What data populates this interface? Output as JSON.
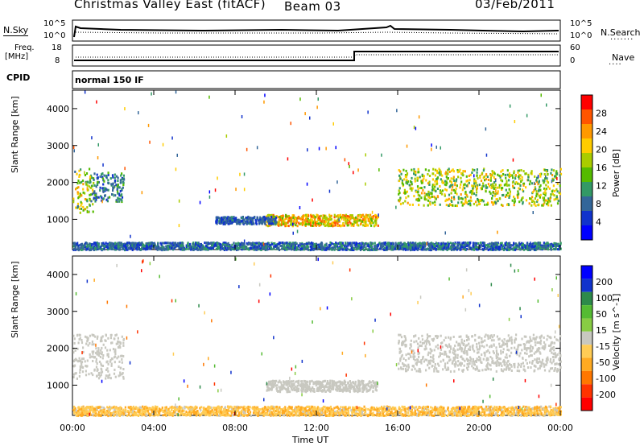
{
  "header": {
    "station": "Christmas Valley East (fitACF)",
    "beam": "Beam 03",
    "date": "03/Feb/2011"
  },
  "top_panels": {
    "nsky_label": "N.Sky",
    "nsky_ticks": [
      "10^5",
      "10^0"
    ],
    "nsearch_label": "N.Search",
    "nsearch_ticks": [
      "10^5",
      "10^0"
    ],
    "freq_label_1": "Freq.",
    "freq_label_2": "[MHz]",
    "freq_ticks": [
      "18",
      "8"
    ],
    "nave_label": "Nave",
    "nave_ticks": [
      "60",
      "0"
    ],
    "cpid_label": "CPID",
    "cpid_value": "normal 150 IF"
  },
  "chart_data": [
    {
      "type": "heatmap",
      "name": "power",
      "ylabel": "Slant Range [km]",
      "xlabel": "",
      "ylim": [
        180,
        4500
      ],
      "y_ticks": [
        "4000",
        "3000",
        "2000",
        "1000"
      ],
      "x_ticks": [
        "00:00",
        "04:00",
        "08:00",
        "12:00",
        "16:00",
        "20:00",
        "00:00"
      ],
      "colorbar_label": "Power [dB]",
      "colorbar_ticks": [
        "28",
        "24",
        "20",
        "16",
        "12",
        "8",
        "4"
      ],
      "colorbar_colors": [
        "#ff0000",
        "#ff5500",
        "#ff9900",
        "#ffcc00",
        "#aacc00",
        "#55bb00",
        "#339966",
        "#336699",
        "#1133cc",
        "#0000ff"
      ],
      "regions": [
        {
          "t": [
            0.0,
            1.0
          ],
          "r": [
            1200,
            2400
          ],
          "v": [
            8,
            24
          ]
        },
        {
          "t": [
            1.0,
            2.5
          ],
          "r": [
            1500,
            2300
          ],
          "v": [
            4,
            14
          ]
        },
        {
          "t": [
            0.0,
            24.0
          ],
          "r": [
            200,
            400
          ],
          "v": [
            4,
            12
          ]
        },
        {
          "t": [
            9.5,
            15.0
          ],
          "r": [
            850,
            1150
          ],
          "v": [
            14,
            28
          ]
        },
        {
          "t": [
            7.0,
            10.0
          ],
          "r": [
            900,
            1100
          ],
          "v": [
            4,
            10
          ]
        },
        {
          "t": [
            16.0,
            24.0
          ],
          "r": [
            1400,
            2400
          ],
          "v": [
            10,
            24
          ]
        }
      ]
    },
    {
      "type": "heatmap",
      "name": "velocity",
      "ylabel": "Slant Range [km]",
      "xlabel": "Time UT",
      "ylim": [
        180,
        4500
      ],
      "y_ticks": [
        "4000",
        "3000",
        "2000",
        "1000"
      ],
      "x_ticks": [
        "00:00",
        "04:00",
        "08:00",
        "12:00",
        "16:00",
        "20:00",
        "00:00"
      ],
      "colorbar_label": "Velocity [m s^-1]",
      "colorbar_ticks": [
        "200",
        "100",
        "50",
        "15",
        "-15",
        "-50",
        "-100",
        "-200"
      ],
      "colorbar_colors": [
        "#0000ff",
        "#1133cc",
        "#2d8a4a",
        "#55bb33",
        "#88cc44",
        "#c8c8c0",
        "#ffcc55",
        "#ffaa22",
        "#ff7700",
        "#ff3300",
        "#ff0000"
      ],
      "regions": [
        {
          "t": [
            0.0,
            2.5
          ],
          "r": [
            1200,
            2400
          ],
          "v": [
            -15,
            15
          ]
        },
        {
          "t": [
            0.0,
            24.0
          ],
          "r": [
            200,
            450
          ],
          "v": [
            -100,
            -15
          ]
        },
        {
          "t": [
            9.5,
            15.0
          ],
          "r": [
            850,
            1150
          ],
          "v": [
            -15,
            15
          ]
        },
        {
          "t": [
            16.0,
            24.0
          ],
          "r": [
            1400,
            2400
          ],
          "v": [
            -15,
            15
          ]
        }
      ]
    }
  ]
}
